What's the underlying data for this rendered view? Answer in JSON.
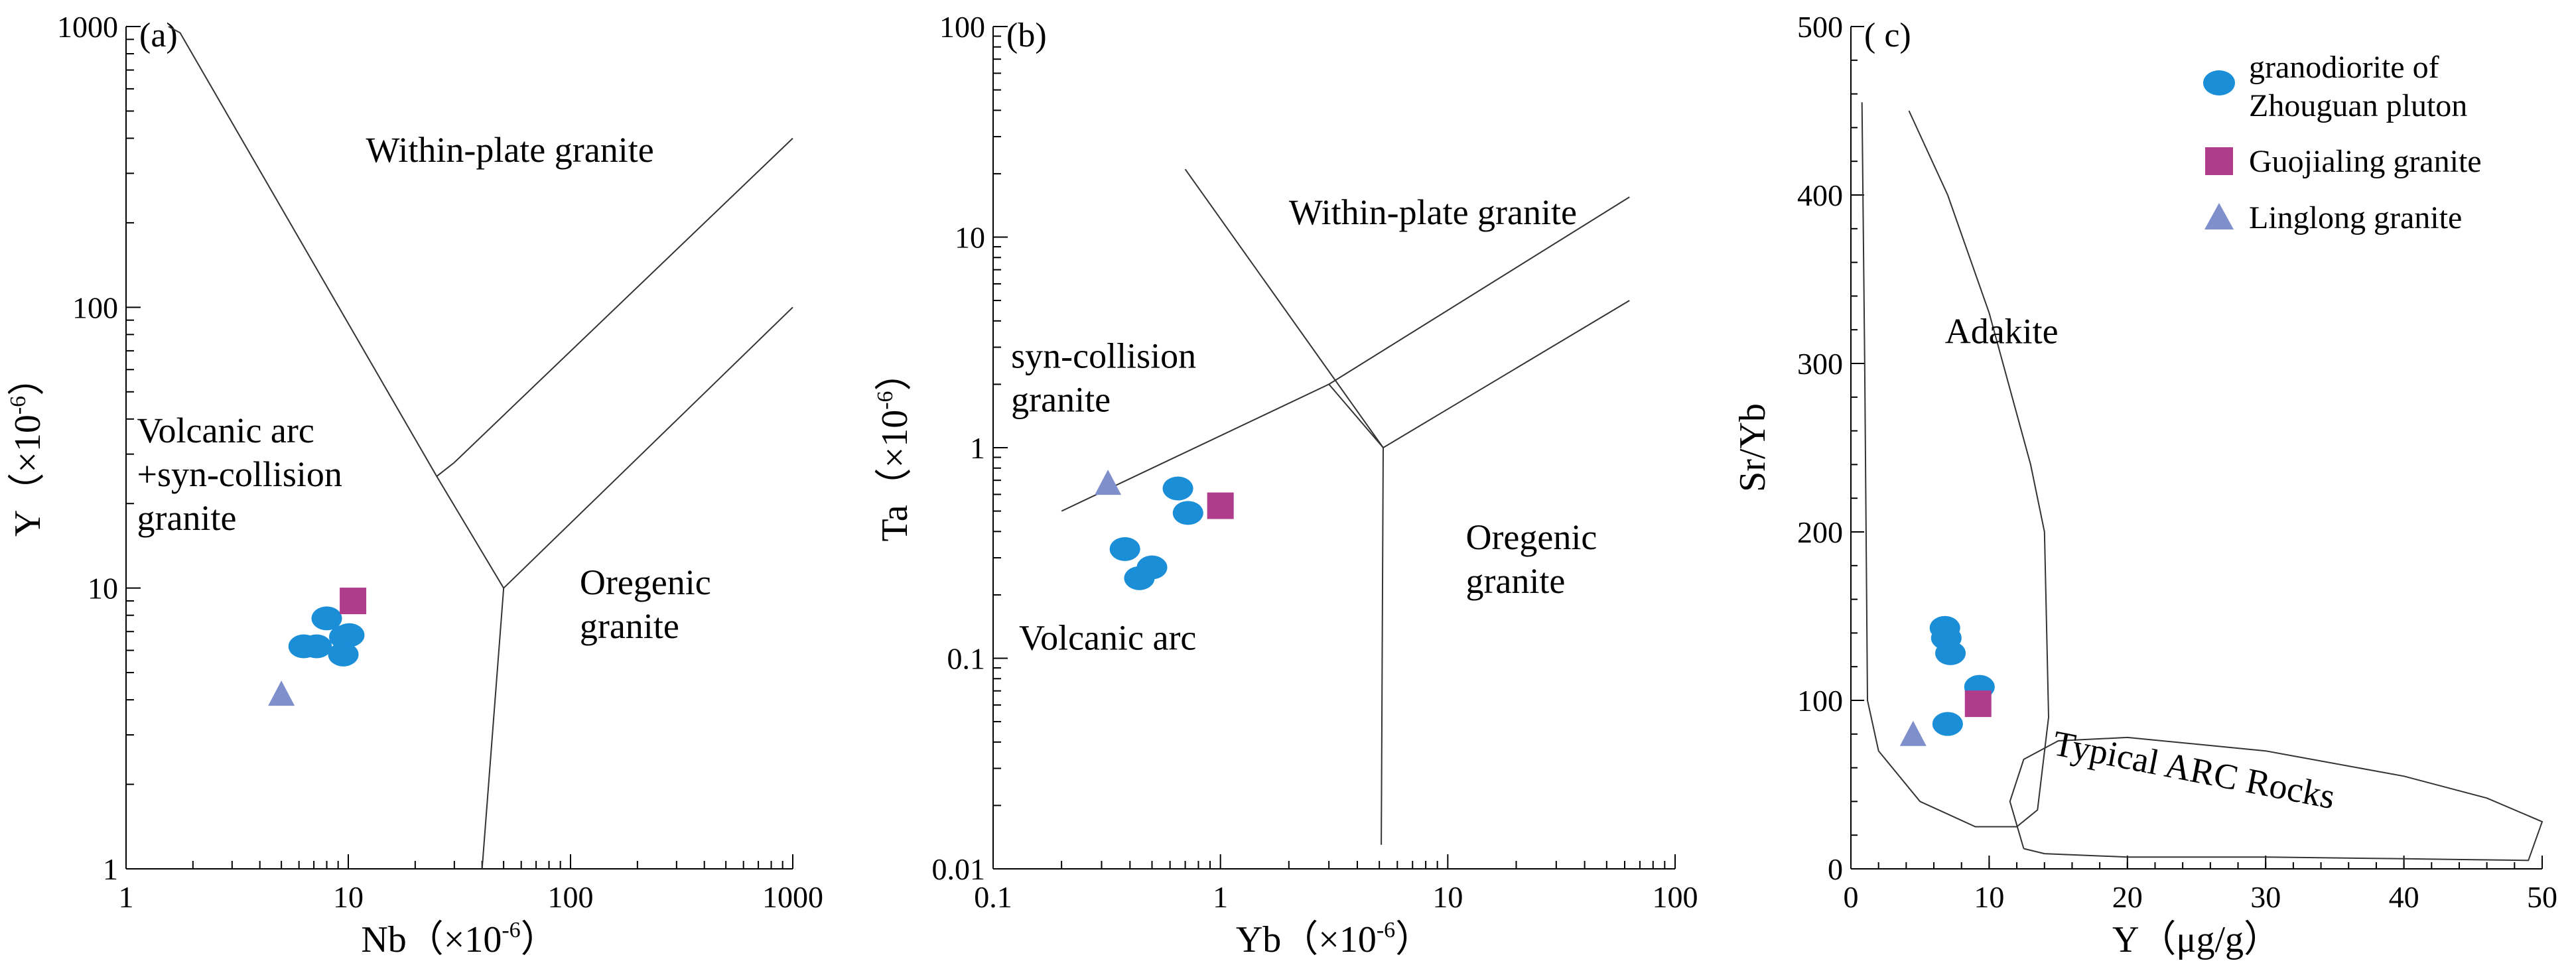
{
  "colors": {
    "granodiorite": "#1a8fd8",
    "guojialing": "#b03c8c",
    "linglong": "#7f8fcc"
  },
  "legend": [
    {
      "key": "granodiorite",
      "marker": "circle",
      "lines": [
        "granodiorite of",
        "Zhouguan pluton"
      ]
    },
    {
      "key": "guojialing",
      "marker": "square",
      "lines": [
        "Guojialing granite"
      ]
    },
    {
      "key": "linglong",
      "marker": "triangle",
      "lines": [
        "Linglong granite"
      ]
    }
  ],
  "chart_data": [
    {
      "type": "scatter",
      "panel_label": "(a)",
      "xlabel": "Nb（×10",
      "xlabel_sup": "-6",
      "xlabel_end": "）",
      "ylabel": "Y（×10",
      "ylabel_sup": "-6",
      "ylabel_end": "）",
      "x_scale": "log",
      "y_scale": "log",
      "xlim": [
        1,
        1000
      ],
      "ylim": [
        1,
        1000
      ],
      "x_ticks": [
        "1",
        "10",
        "100",
        "1000"
      ],
      "y_ticks": [
        "1",
        "10",
        "100",
        "1000"
      ],
      "field_labels": [
        {
          "lines": [
            "Within-plate granite"
          ],
          "x": 12,
          "y": 330
        },
        {
          "lines": [
            "Volcanic arc",
            "+syn-collision",
            "granite"
          ],
          "x": 1.12,
          "y": 33
        },
        {
          "lines": [
            "Oregenic",
            "granite"
          ],
          "x": 110,
          "y": 9.5
        }
      ],
      "boundaries": [
        [
          [
            1.55,
            1000
          ],
          [
            1.75,
            950
          ],
          [
            25,
            25
          ],
          [
            50,
            10
          ],
          [
            40,
            1
          ]
        ],
        [
          [
            25,
            25
          ],
          [
            30,
            28
          ],
          [
            1000,
            400
          ]
        ],
        [
          [
            50,
            10
          ],
          [
            1000,
            100
          ]
        ]
      ],
      "series": [
        {
          "key": "granodiorite",
          "points": [
            [
              8,
              7.8
            ],
            [
              6.3,
              6.2
            ],
            [
              7.2,
              6.2
            ],
            [
              9.6,
              6.7
            ],
            [
              10.1,
              6.8
            ],
            [
              9.5,
              5.8
            ]
          ]
        },
        {
          "key": "guojialing",
          "points": [
            [
              10.5,
              9
            ]
          ]
        },
        {
          "key": "linglong",
          "points": [
            [
              5,
              4.2
            ]
          ]
        }
      ]
    },
    {
      "type": "scatter",
      "panel_label": "(b)",
      "xlabel": "Yb（×10",
      "xlabel_sup": "-6",
      "xlabel_end": "）",
      "ylabel": "Ta（×10",
      "ylabel_sup": "-6",
      "ylabel_end": "）",
      "x_scale": "log",
      "y_scale": "log",
      "xlim": [
        0.1,
        100
      ],
      "ylim": [
        0.01,
        100
      ],
      "x_ticks": [
        "0.1",
        "1",
        "10",
        "100"
      ],
      "y_ticks": [
        "0.01",
        "0.1",
        "1",
        "10",
        "100"
      ],
      "field_labels": [
        {
          "lines": [
            "Within-plate granite"
          ],
          "x": 2.0,
          "y": 11.5
        },
        {
          "lines": [
            "syn-collision",
            "granite"
          ],
          "x": 0.12,
          "y": 2.4
        },
        {
          "lines": [
            "Volcanic arc"
          ],
          "x": 0.13,
          "y": 0.11
        },
        {
          "lines": [
            "Oregenic",
            "granite"
          ],
          "x": 12,
          "y": 0.33
        }
      ],
      "boundaries": [
        [
          [
            0.2,
            0.5
          ],
          [
            3,
            2
          ],
          [
            63,
            15.5
          ]
        ],
        [
          [
            0.7,
            21
          ],
          [
            5.2,
            1
          ],
          [
            5.1,
            0.013
          ]
        ],
        [
          [
            3,
            2
          ],
          [
            5.2,
            1
          ]
        ],
        [
          [
            5.2,
            1
          ],
          [
            63,
            5
          ]
        ]
      ],
      "series": [
        {
          "key": "granodiorite",
          "points": [
            [
              0.65,
              0.64
            ],
            [
              0.72,
              0.49
            ],
            [
              0.38,
              0.33
            ],
            [
              0.5,
              0.27
            ],
            [
              0.44,
              0.24
            ]
          ]
        },
        {
          "key": "guojialing",
          "points": [
            [
              1,
              0.53
            ]
          ]
        },
        {
          "key": "linglong",
          "points": [
            [
              0.32,
              0.68
            ]
          ]
        }
      ]
    },
    {
      "type": "scatter",
      "panel_label": "( c)",
      "xlabel": "Y（μg/g）",
      "ylabel": "Sr/Yb",
      "x_scale": "linear",
      "y_scale": "linear",
      "xlim": [
        0,
        50
      ],
      "ylim": [
        0,
        500
      ],
      "x_ticks": [
        "0",
        "10",
        "20",
        "30",
        "40",
        "50"
      ],
      "y_ticks": [
        "0",
        "100",
        "200",
        "300",
        "400",
        "500"
      ],
      "field_labels": [
        {
          "lines": [
            "Adakite"
          ],
          "x": 6.8,
          "y": 312
        },
        {
          "lines": [
            "Typical ARC Rocks"
          ],
          "x": 14.5,
          "y": 68,
          "rotate": 11
        }
      ],
      "boundaries": [
        [
          [
            0.8,
            455
          ],
          [
            1,
            300
          ],
          [
            1.2,
            100
          ],
          [
            2,
            70
          ],
          [
            5,
            40
          ],
          [
            9,
            25
          ],
          [
            12,
            25
          ],
          [
            13.5,
            35
          ],
          [
            14.3,
            90
          ],
          [
            14,
            200
          ],
          [
            13,
            240
          ],
          [
            10,
            330
          ],
          [
            7,
            400
          ],
          [
            4.2,
            450
          ]
        ],
        [
          [
            12.5,
            12
          ],
          [
            11.5,
            40
          ],
          [
            12.5,
            65
          ],
          [
            15,
            76
          ],
          [
            20,
            78
          ],
          [
            30,
            70
          ],
          [
            40,
            55
          ],
          [
            46,
            42
          ],
          [
            50,
            28
          ],
          [
            49,
            5
          ],
          [
            40,
            6
          ],
          [
            30,
            7
          ],
          [
            20,
            7
          ],
          [
            14,
            9
          ],
          [
            12.5,
            12
          ]
        ]
      ],
      "series": [
        {
          "key": "granodiorite",
          "points": [
            [
              6.8,
              143
            ],
            [
              6.9,
              137
            ],
            [
              7.2,
              128
            ],
            [
              9.3,
              108
            ],
            [
              7,
              86
            ]
          ]
        },
        {
          "key": "guojialing",
          "points": [
            [
              9.2,
              98
            ]
          ]
        },
        {
          "key": "linglong",
          "points": [
            [
              4.5,
              80
            ]
          ]
        }
      ]
    }
  ]
}
